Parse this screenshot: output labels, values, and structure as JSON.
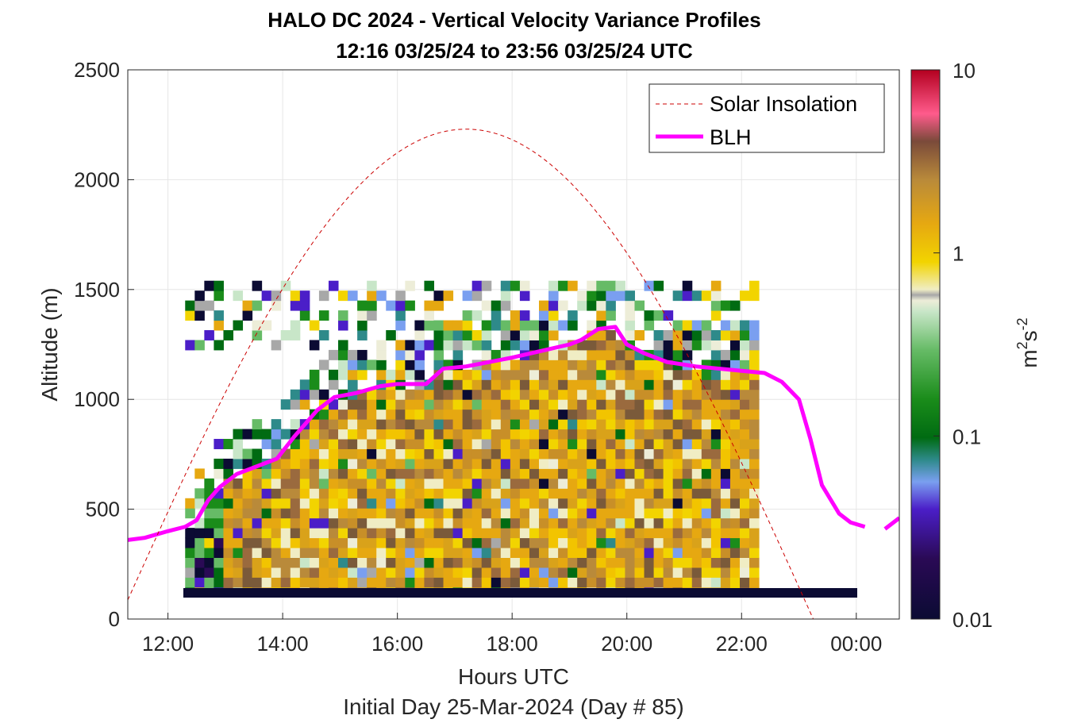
{
  "chart_data": {
    "type": "heatmap",
    "title": "HALO DC 2024 - Vertical Velocity Variance Profiles",
    "subtitle": "12:16 03/25/24 to 23:56 03/25/24  UTC",
    "xlabel": "Hours UTC",
    "xlabel2": "Initial Day 25-Mar-2024 (Day # 85)",
    "ylabel": "Altitude (m)",
    "xlim": [
      11.3,
      24.75
    ],
    "ylim": [
      0,
      2500
    ],
    "x_ticks": [
      12,
      14,
      16,
      18,
      20,
      22,
      24
    ],
    "x_tick_labels": [
      "12:00",
      "14:00",
      "16:00",
      "18:00",
      "20:00",
      "22:00",
      "00:00"
    ],
    "y_ticks": [
      0,
      500,
      1000,
      1500,
      2000,
      2500
    ],
    "y_tick_labels": [
      "0",
      "500",
      "1000",
      "1500",
      "2000",
      "2500"
    ],
    "grid": true,
    "colorbar": {
      "label_main": "m",
      "label_sup1": "2",
      "label_mid": "s",
      "label_sup2": "-2",
      "scale": "log",
      "range": [
        0.01,
        10
      ],
      "ticks": [
        0.01,
        0.1,
        1,
        10
      ],
      "tick_labels": [
        "0.01",
        "0.1",
        "1",
        "10"
      ]
    },
    "legend": {
      "position": "top-right",
      "entries": [
        {
          "label": "Solar Insolation",
          "color": "#cc0000",
          "style": "dashed"
        },
        {
          "label": "BLH",
          "color": "#ff00ff",
          "style": "solid"
        }
      ]
    },
    "series": [
      {
        "name": "BLH",
        "x": [
          11.3,
          11.6,
          12.0,
          12.3,
          12.5,
          12.7,
          12.9,
          13.2,
          13.5,
          13.9,
          14.2,
          14.6,
          14.9,
          15.3,
          15.7,
          16.0,
          16.5,
          16.8,
          17.2,
          17.6,
          18.0,
          18.5,
          19.0,
          19.2,
          19.5,
          19.8,
          20.0,
          20.3,
          20.7,
          21.2,
          21.6,
          22.0,
          22.4,
          22.7,
          23.0,
          23.2,
          23.4,
          23.7,
          23.9,
          24.15
        ],
        "y": [
          360,
          370,
          400,
          420,
          450,
          540,
          600,
          660,
          690,
          730,
          830,
          950,
          1010,
          1030,
          1060,
          1070,
          1070,
          1140,
          1150,
          1170,
          1190,
          1220,
          1250,
          1270,
          1320,
          1330,
          1250,
          1210,
          1170,
          1150,
          1140,
          1130,
          1120,
          1080,
          1000,
          820,
          610,
          480,
          440,
          420
        ]
      },
      {
        "name": "BLH",
        "x": [
          24.5,
          24.75
        ],
        "y": [
          410,
          460
        ]
      },
      {
        "name": "Solar Insolation",
        "curve": "sine",
        "x_start": 11.3,
        "x_peak": 17.2,
        "x_zero": 23.25,
        "y_start": 110,
        "y_peak": 2230
      }
    ],
    "heatmap_grid": {
      "x_start": 12.3,
      "x_step": 0.1667,
      "columns": 60,
      "y_start": 100,
      "y_step": 45,
      "rows": 32
    }
  }
}
